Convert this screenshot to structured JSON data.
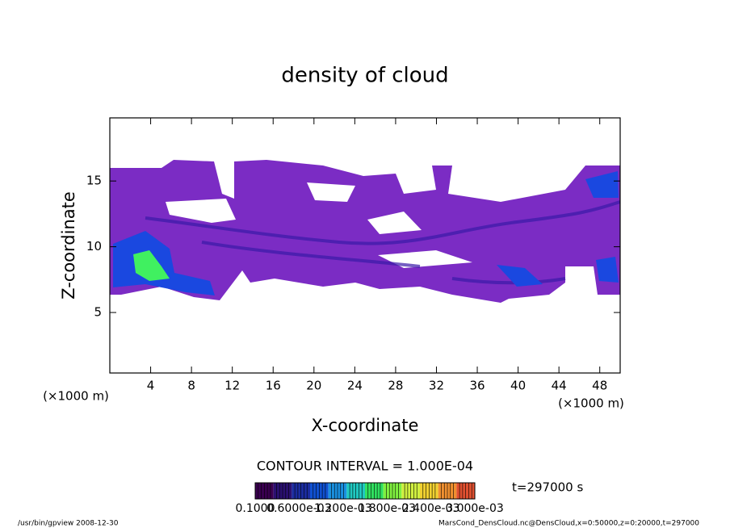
{
  "chart_data": {
    "type": "contour",
    "title": "density of cloud",
    "x_label": "X-coordinate",
    "y_label": "Z-coordinate",
    "x_unit_left": "(×1000 m)",
    "x_unit_right": "(×1000 m)",
    "xlim": [
      0,
      50
    ],
    "xticks": [
      4,
      8,
      12,
      16,
      20,
      24,
      28,
      32,
      36,
      40,
      44,
      48
    ],
    "ylim": [
      0.4,
      19.8
    ],
    "yticks": [
      5,
      10,
      15
    ],
    "contour_interval": "CONTOUR INTERVAL = 1.000E-04",
    "time_label": "t=297000 s",
    "colorbar_labels": [
      "0.1000",
      "0.6000e-03",
      "1.200e-03",
      "1.800e-03",
      "2.400e-03",
      "3.000e-03"
    ],
    "colorbar_colors": [
      "#3a0050",
      "#2a1070",
      "#1b2ca0",
      "#1050d0",
      "#1a90e0",
      "#20c8c0",
      "#30e060",
      "#80f040",
      "#d0f040",
      "#f0d030",
      "#f09030",
      "#e05030"
    ],
    "footer_left": "/usr/bin/gpview   2008-12-30",
    "footer_right": "MarsCond_DensCloud.nc@DensCloud,x=0:50000,z=0:20000,t=297000"
  }
}
